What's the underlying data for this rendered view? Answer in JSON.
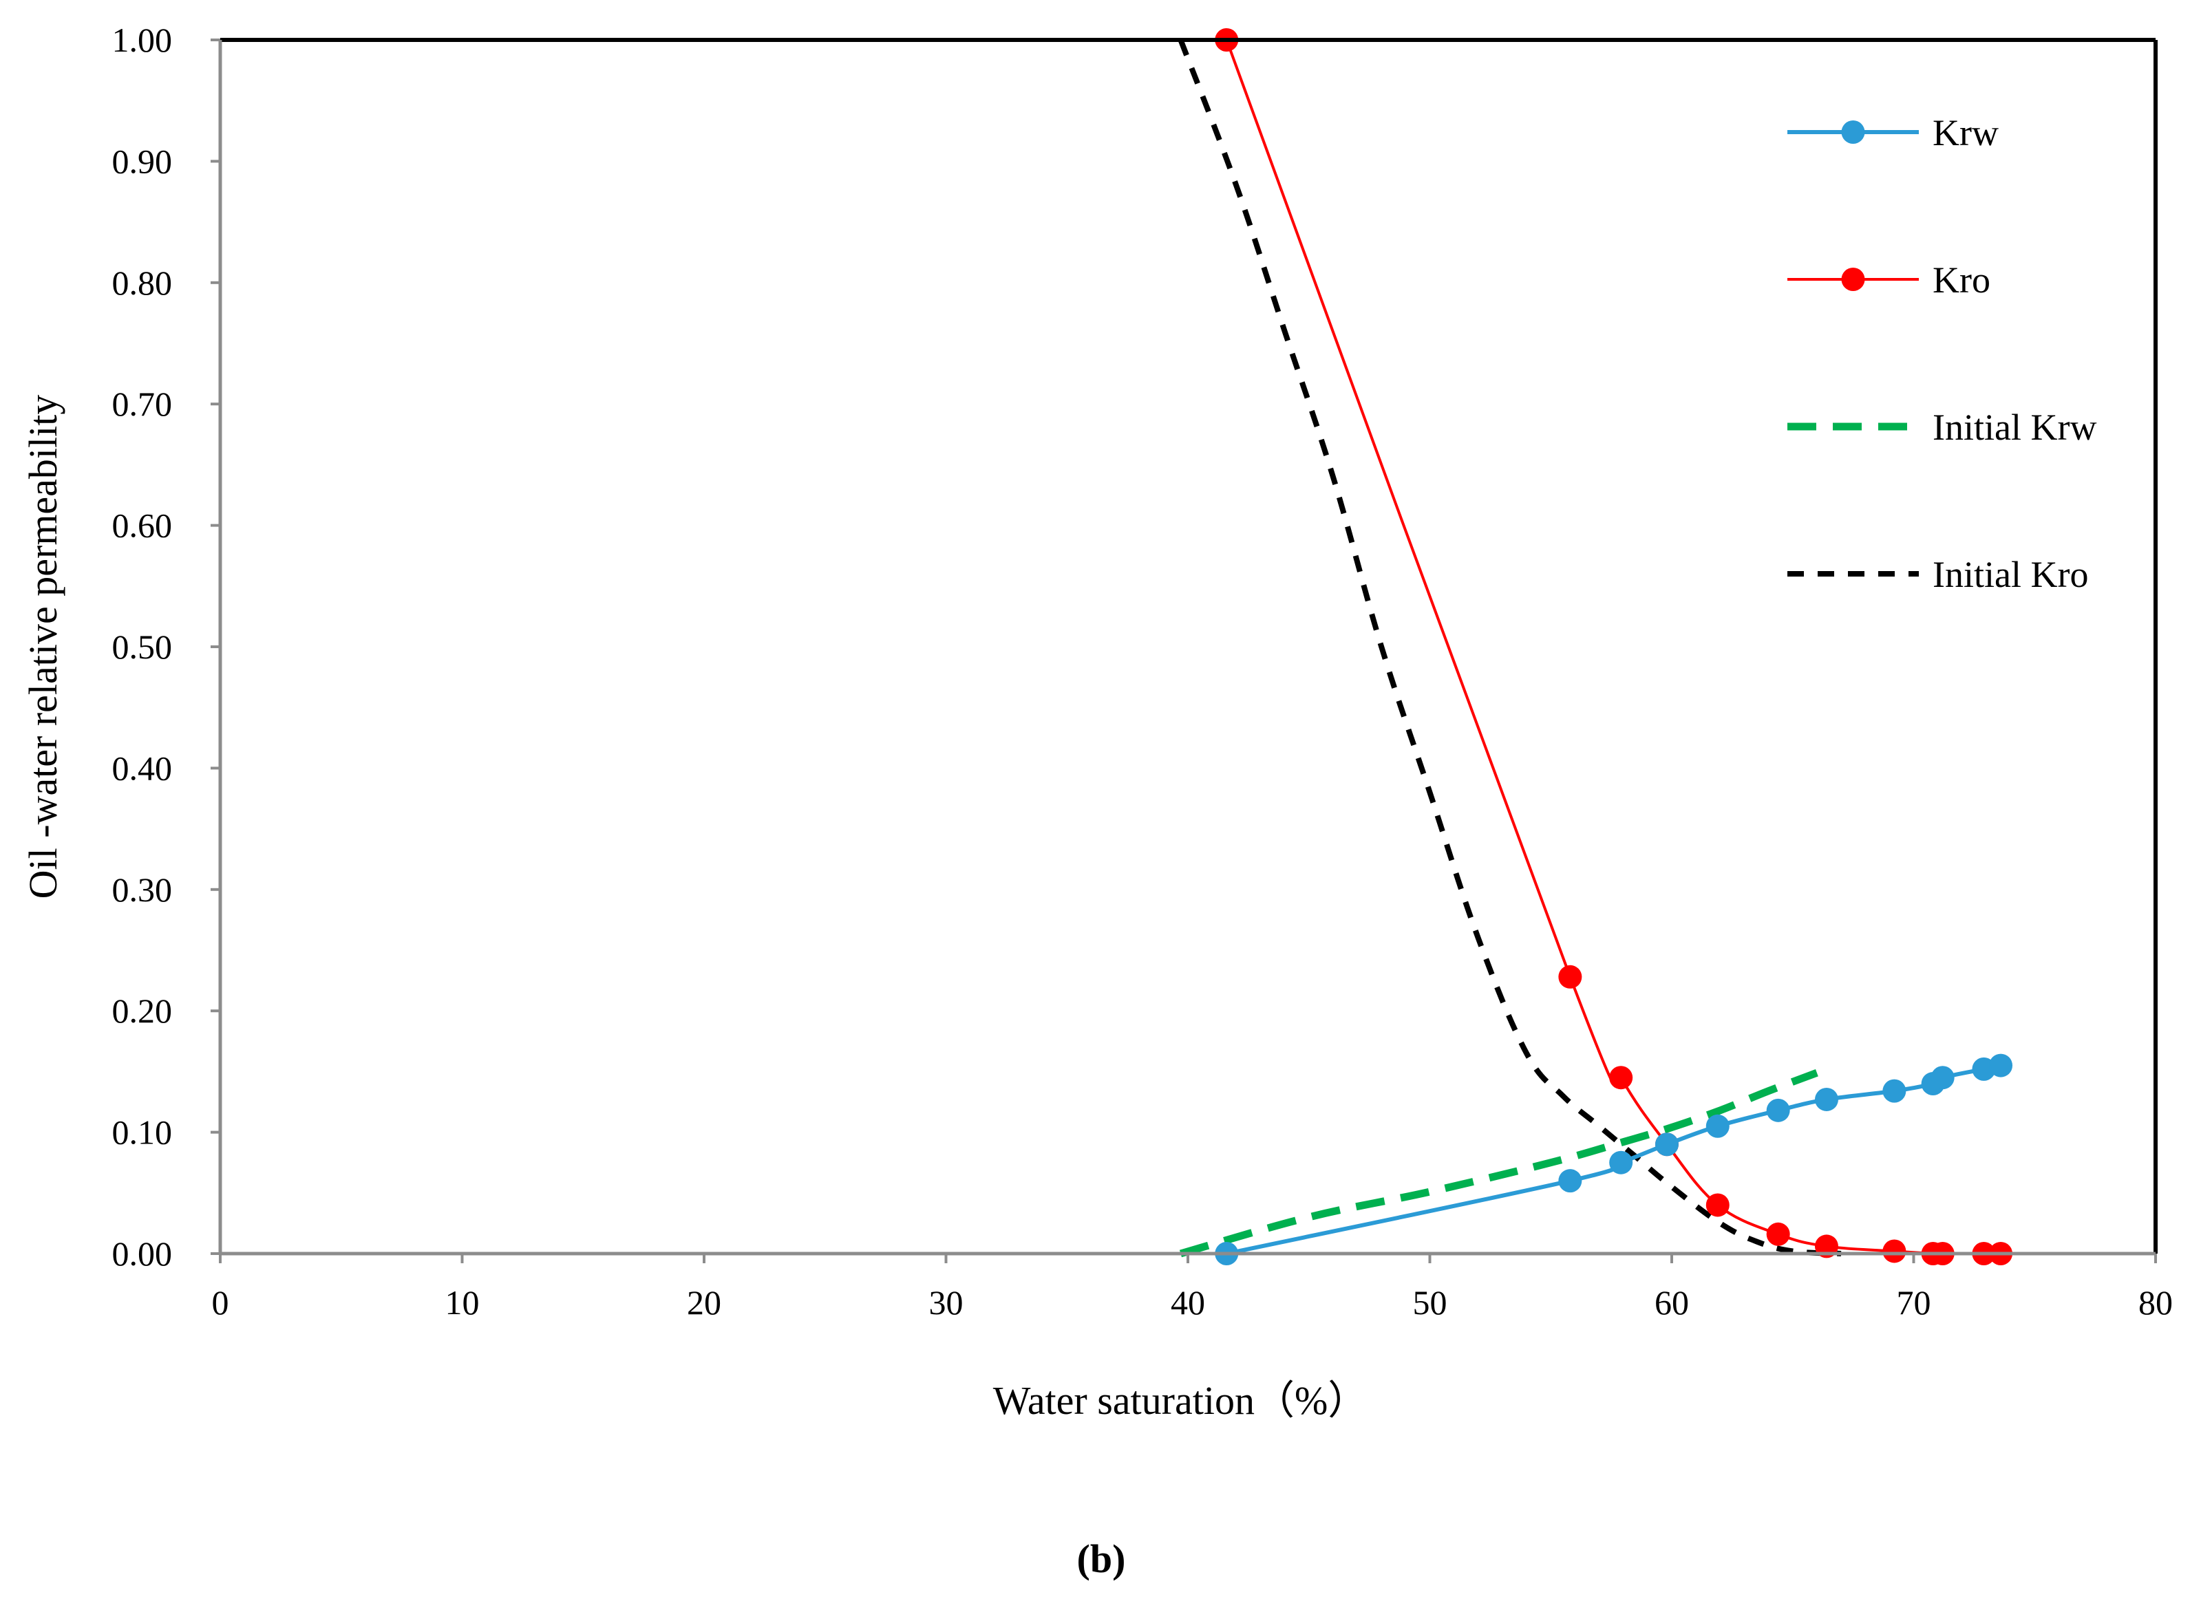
{
  "chart_data": {
    "type": "line",
    "title": "",
    "xlabel": "Water saturation（%）",
    "ylabel": "Oil -water relative permeability",
    "xlim": [
      0,
      80
    ],
    "ylim": [
      0,
      1
    ],
    "x_ticks": [
      0,
      10,
      20,
      30,
      40,
      50,
      60,
      70,
      80
    ],
    "x_tick_labels": [
      "0",
      "10",
      "20",
      "30",
      "40",
      "50",
      "60",
      "70",
      "80"
    ],
    "y_ticks": [
      0,
      0.1,
      0.2,
      0.3,
      0.4,
      0.5,
      0.6,
      0.7,
      0.8,
      0.9,
      1.0
    ],
    "y_tick_labels": [
      "0.00",
      "0.10",
      "0.20",
      "0.30",
      "0.40",
      "0.50",
      "0.60",
      "0.70",
      "0.80",
      "0.90",
      "1.00"
    ],
    "grid": false,
    "legend_position": "top-right",
    "series": [
      {
        "name": "Krw",
        "color": "#2b9bd6",
        "style": "solid-marker",
        "x": [
          41.6,
          55.8,
          57.9,
          59.8,
          61.9,
          64.4,
          66.4,
          69.2,
          70.8,
          71.2,
          72.9,
          73.6
        ],
        "y": [
          0.0,
          0.06,
          0.075,
          0.09,
          0.105,
          0.118,
          0.127,
          0.134,
          0.14,
          0.145,
          0.152,
          0.155
        ]
      },
      {
        "name": "Kro",
        "color": "#ff0000",
        "style": "solid-marker",
        "x": [
          41.6,
          55.8,
          57.9,
          59.8,
          61.9,
          64.4,
          66.4,
          69.2,
          70.8,
          71.2,
          72.9,
          73.6
        ],
        "y": [
          1.0,
          0.228,
          0.145,
          0.09,
          0.04,
          0.016,
          0.006,
          0.002,
          0.0,
          0.0,
          0.0,
          0.0
        ]
      },
      {
        "name": "Initial Krw",
        "color": "#00b04f",
        "style": "dashed",
        "x": [
          39.7,
          45.0,
          50.0,
          55.0,
          58.0,
          60.0,
          62.0,
          64.0,
          66.0
        ],
        "y": [
          0.0,
          0.03,
          0.051,
          0.075,
          0.092,
          0.104,
          0.118,
          0.134,
          0.149
        ]
      },
      {
        "name": "Initial Kro",
        "color": "#000000",
        "style": "dashed",
        "x": [
          39.7,
          42.0,
          44.0,
          46.0,
          48.0,
          50.0,
          52.0,
          54.0,
          55.5,
          57.0,
          58.5,
          60.0,
          62.0,
          63.5,
          65.0,
          67.0
        ],
        "y": [
          1.0,
          0.88,
          0.76,
          0.64,
          0.5,
          0.38,
          0.26,
          0.165,
          0.13,
          0.105,
          0.08,
          0.055,
          0.025,
          0.01,
          0.002,
          0.0
        ]
      }
    ]
  },
  "caption": "(b)"
}
